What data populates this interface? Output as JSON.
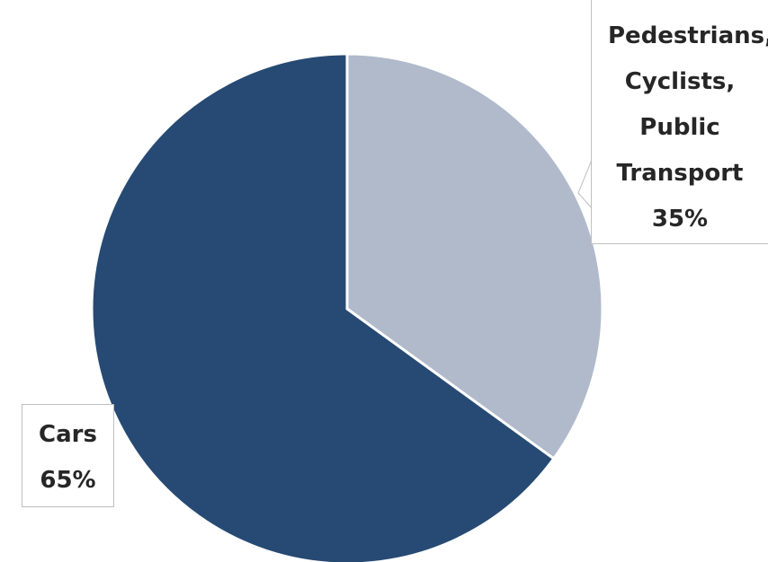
{
  "chart_data": {
    "type": "pie",
    "categories": [
      "Pedestrians, Cyclists, Public Transport",
      "Cars"
    ],
    "values": [
      35,
      65
    ],
    "value_labels": [
      "35%",
      "65%"
    ],
    "colors": [
      "#b0bacb",
      "#264a73"
    ]
  }
}
